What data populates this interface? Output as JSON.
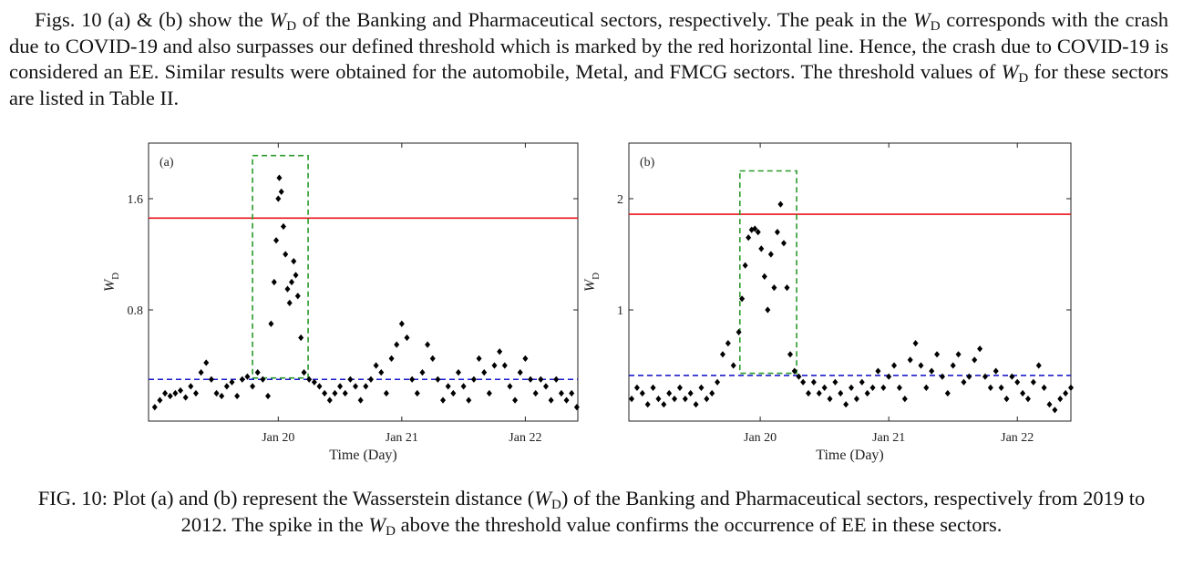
{
  "paragraph": [
    "Figs. 10 (a) & (b) show the ",
    {
      "math": "W",
      "sub": "D"
    },
    " of the Banking and Pharmaceutical sectors, respectively. The peak in the ",
    {
      "math": "W",
      "sub": "D"
    },
    " corresponds with the crash due to COVID-19 and also surpasses our defined threshold which is marked by the red horizontal line. Hence, the crash due to COVID-19 is considered an EE. Similar results were obtained for the automobile, Metal, and FMCG sectors. The threshold values of ",
    {
      "math": "W",
      "sub": "D"
    },
    " for these sectors are listed in Table II."
  ],
  "caption": [
    "FIG. 10: Plot (a) and (b) represent the Wasserstein distance (",
    {
      "math": "W",
      "sub": "D"
    },
    ") of the Banking and Pharmaceutical sectors, respectively from 2019 to 2012. The spike in the ",
    {
      "math": "W",
      "sub": "D"
    },
    " above the threshold value confirms the occurrence of EE in these sectors."
  ],
  "chart_data": [
    {
      "type": "scatter",
      "panel": "(a)",
      "xlabel": "Time (Day)",
      "ylabel": {
        "math": "W",
        "sub": "D"
      },
      "color": "#000000",
      "xlim": [
        -0.6,
        41.1
      ],
      "ylim": [
        0,
        2.0
      ],
      "xticks": [
        {
          "value": 12,
          "label": "Jan 20"
        },
        {
          "value": 24,
          "label": "Jan 21"
        },
        {
          "value": 36,
          "label": "Jan 22"
        }
      ],
      "yticks": [
        0.8,
        1.6
      ],
      "hlines": [
        {
          "value": 1.46,
          "color": "#e8141b",
          "style": "solid"
        },
        {
          "value": 0.3,
          "color": "#1a1acc",
          "style": "dashed"
        }
      ],
      "box": {
        "x": [
          9.5,
          14.9
        ],
        "y": [
          0.31,
          1.91
        ],
        "color": "#2a9a2a"
      },
      "x": [
        0,
        0.5,
        1,
        1.5,
        2,
        2.5,
        3,
        3.5,
        4,
        4.5,
        5,
        5.5,
        6,
        6.5,
        7,
        7.5,
        8,
        8.5,
        9,
        9.5,
        10,
        10.5,
        11,
        11.3,
        11.6,
        11.8,
        12,
        12.1,
        12.3,
        12.5,
        12.7,
        12.9,
        13.1,
        13.3,
        13.5,
        13.7,
        13.9,
        14.2,
        14.5,
        15,
        15.5,
        16,
        16.5,
        17,
        17.5,
        18,
        18.5,
        19,
        19.5,
        20,
        20.5,
        21,
        21.5,
        22,
        22.5,
        23,
        23.5,
        24,
        24.5,
        25,
        25.5,
        26,
        26.5,
        27,
        27.5,
        28,
        28.5,
        29,
        29.5,
        30,
        30.5,
        31,
        31.5,
        32,
        32.5,
        33,
        33.5,
        34,
        34.5,
        35,
        35.5,
        36,
        36.5,
        37,
        37.5,
        38,
        38.5,
        39,
        39.5,
        40,
        40.5,
        41
      ],
      "values": [
        0.1,
        0.15,
        0.2,
        0.18,
        0.2,
        0.22,
        0.17,
        0.25,
        0.2,
        0.35,
        0.42,
        0.3,
        0.2,
        0.18,
        0.25,
        0.28,
        0.18,
        0.3,
        0.32,
        0.25,
        0.35,
        0.3,
        0.18,
        0.7,
        1.0,
        1.3,
        1.6,
        1.75,
        1.65,
        1.4,
        1.2,
        0.95,
        0.85,
        1.0,
        1.15,
        1.05,
        0.9,
        0.6,
        0.35,
        0.3,
        0.28,
        0.25,
        0.2,
        0.15,
        0.2,
        0.25,
        0.2,
        0.3,
        0.25,
        0.15,
        0.25,
        0.3,
        0.4,
        0.35,
        0.2,
        0.45,
        0.55,
        0.7,
        0.6,
        0.3,
        0.2,
        0.35,
        0.55,
        0.45,
        0.3,
        0.15,
        0.25,
        0.2,
        0.35,
        0.25,
        0.15,
        0.3,
        0.45,
        0.35,
        0.2,
        0.4,
        0.5,
        0.4,
        0.25,
        0.15,
        0.35,
        0.45,
        0.3,
        0.2,
        0.3,
        0.25,
        0.15,
        0.3,
        0.2,
        0.15,
        0.2,
        0.1
      ]
    },
    {
      "type": "scatter",
      "panel": "(b)",
      "xlabel": "Time (Day)",
      "ylabel": {
        "math": "W",
        "sub": "D"
      },
      "color": "#000000",
      "xlim": [
        -0.26,
        41.0
      ],
      "ylim": [
        0,
        2.5
      ],
      "xticks": [
        {
          "value": 12,
          "label": "Jan 20"
        },
        {
          "value": 24,
          "label": "Jan 21"
        },
        {
          "value": 36,
          "label": "Jan 22"
        }
      ],
      "yticks": [
        1,
        2
      ],
      "hlines": [
        {
          "value": 1.86,
          "color": "#e8141b",
          "style": "solid"
        },
        {
          "value": 0.41,
          "color": "#1a1acc",
          "style": "dashed"
        }
      ],
      "box": {
        "x": [
          10.1,
          15.4
        ],
        "y": [
          0.43,
          2.25
        ],
        "color": "#2a9a2a"
      },
      "x": [
        0,
        0.5,
        1,
        1.5,
        2,
        2.5,
        3,
        3.5,
        4,
        4.5,
        5,
        5.5,
        6,
        6.5,
        7,
        7.5,
        8,
        8.5,
        9,
        9.5,
        10,
        10.3,
        10.6,
        10.9,
        11.2,
        11.5,
        11.8,
        12.1,
        12.4,
        12.7,
        13,
        13.3,
        13.6,
        13.9,
        14.2,
        14.5,
        14.8,
        15.2,
        15.6,
        16,
        16.5,
        17,
        17.5,
        18,
        18.5,
        19,
        19.5,
        20,
        20.5,
        21,
        21.5,
        22,
        22.5,
        23,
        23.5,
        24,
        24.5,
        25,
        25.5,
        26,
        26.5,
        27,
        27.5,
        28,
        28.5,
        29,
        29.5,
        30,
        30.5,
        31,
        31.5,
        32,
        32.5,
        33,
        33.5,
        34,
        34.5,
        35,
        35.5,
        36,
        36.5,
        37,
        37.5,
        38,
        38.5,
        39,
        39.5,
        40,
        40.5,
        41
      ],
      "values": [
        0.2,
        0.3,
        0.25,
        0.15,
        0.3,
        0.2,
        0.15,
        0.25,
        0.2,
        0.3,
        0.2,
        0.25,
        0.15,
        0.3,
        0.2,
        0.25,
        0.35,
        0.6,
        0.7,
        0.5,
        0.8,
        1.1,
        1.4,
        1.65,
        1.72,
        1.73,
        1.7,
        1.55,
        1.3,
        1.0,
        1.5,
        1.2,
        1.7,
        1.95,
        1.6,
        1.2,
        0.6,
        0.45,
        0.4,
        0.35,
        0.25,
        0.35,
        0.25,
        0.3,
        0.2,
        0.35,
        0.25,
        0.15,
        0.3,
        0.2,
        0.35,
        0.25,
        0.3,
        0.45,
        0.3,
        0.4,
        0.5,
        0.3,
        0.2,
        0.55,
        0.7,
        0.5,
        0.3,
        0.45,
        0.6,
        0.4,
        0.25,
        0.5,
        0.6,
        0.35,
        0.4,
        0.55,
        0.65,
        0.4,
        0.3,
        0.45,
        0.3,
        0.2,
        0.4,
        0.35,
        0.25,
        0.2,
        0.35,
        0.5,
        0.3,
        0.15,
        0.1,
        0.2,
        0.25,
        0.3
      ]
    }
  ]
}
